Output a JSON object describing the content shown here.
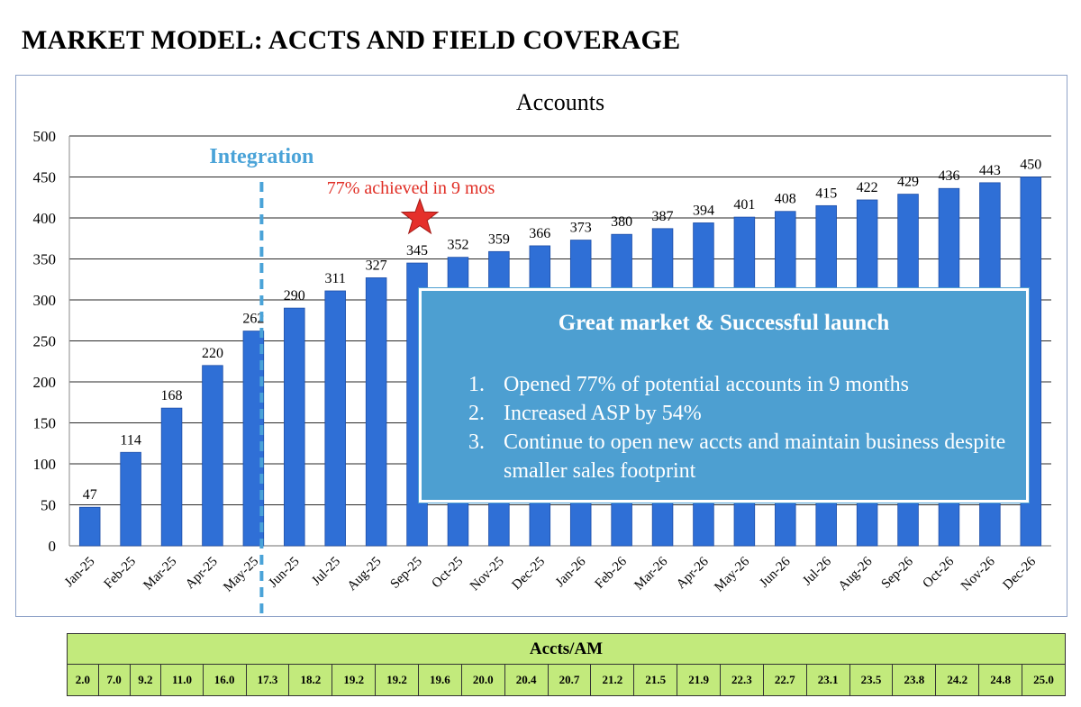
{
  "page_title": "MARKET MODEL: ACCTS AND FIELD COVERAGE",
  "colors": {
    "bar": "#2f6fd6",
    "bar_edge": "#1f4fa8",
    "integration": "#4aa3d8",
    "star": "#e5302b",
    "annotation": "#e02d24",
    "callout_bg": "#4d9fd1",
    "table_bg": "#c2ea7c"
  },
  "chart_data": {
    "type": "bar",
    "title": "Accounts",
    "categories": [
      "Jan-25",
      "Feb-25",
      "Mar-25",
      "Apr-25",
      "May-25",
      "Jun-25",
      "Jul-25",
      "Aug-25",
      "Sep-25",
      "Oct-25",
      "Nov-25",
      "Dec-25",
      "Jan-26",
      "Feb-26",
      "Mar-26",
      "Apr-26",
      "May-26",
      "Jun-26",
      "Jul-26",
      "Aug-26",
      "Sep-26",
      "Oct-26",
      "Nov-26",
      "Dec-26"
    ],
    "values": [
      47,
      114,
      168,
      220,
      262,
      290,
      311,
      327,
      345,
      352,
      359,
      366,
      373,
      380,
      387,
      394,
      401,
      408,
      415,
      422,
      429,
      436,
      443,
      450
    ],
    "ylim": [
      0,
      500
    ],
    "yticks": [
      0,
      50,
      100,
      150,
      200,
      250,
      300,
      350,
      400,
      450,
      500
    ],
    "grid": true,
    "integration_marker": {
      "label": "Integration",
      "category": "May-25"
    },
    "star_marker": {
      "label": "77% achieved in 9 mos",
      "category": "Sep-25"
    }
  },
  "callout": {
    "title": "Great market & Successful launch",
    "items": [
      {
        "num": "1.",
        "text": "Opened 77% of potential accounts in 9 months"
      },
      {
        "num": "2.",
        "text": "Increased ASP by 54%"
      },
      {
        "num": "3.",
        "text": "Continue to open new accts and maintain business despite smaller sales footprint"
      }
    ]
  },
  "accts_per_am": {
    "header": "Accts/AM",
    "values": [
      "2.0",
      "7.0",
      "9.2",
      "11.0",
      "16.0",
      "17.3",
      "18.2",
      "19.2",
      "19.2",
      "19.6",
      "20.0",
      "20.4",
      "20.7",
      "21.2",
      "21.5",
      "21.9",
      "22.3",
      "22.7",
      "23.1",
      "23.5",
      "23.8",
      "24.2",
      "24.8",
      "25.0"
    ]
  }
}
